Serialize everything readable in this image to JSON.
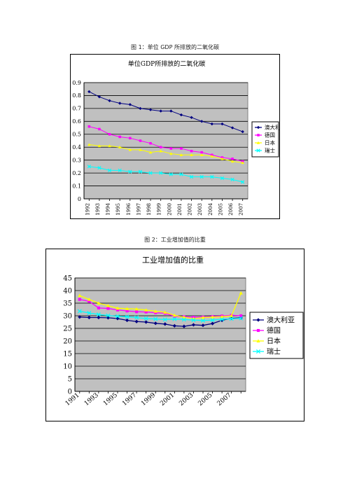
{
  "figure1": {
    "caption": "图 1：单位 GDP 所排放的二氧化碳"
  },
  "figure2": {
    "caption": "图 2：工业增加值的比重"
  },
  "chart_data": [
    {
      "type": "line",
      "title": "单位GDP所排放的二氧化碳",
      "xlabel": "",
      "ylabel": "",
      "x": [
        "1992",
        "1993",
        "1994",
        "1995",
        "1996",
        "1997",
        "1998",
        "1999",
        "2000",
        "2001",
        "2002",
        "2003",
        "2004",
        "2005",
        "2006",
        "2007"
      ],
      "ylim": [
        0,
        0.9
      ],
      "yticks": [
        "0",
        "0.1",
        "0.2",
        "0.3",
        "0.4",
        "0.5",
        "0.6",
        "0.7",
        "0.8",
        "0.9"
      ],
      "grid": true,
      "legend_position": "right",
      "series": [
        {
          "name": "澳大利亚",
          "color": "#000080",
          "marker": "diamond",
          "values": [
            0.83,
            0.79,
            0.76,
            0.74,
            0.73,
            0.7,
            0.69,
            0.68,
            0.68,
            0.65,
            0.63,
            0.6,
            0.58,
            0.58,
            0.55,
            0.52
          ]
        },
        {
          "name": "德国",
          "color": "#ff00ff",
          "marker": "square",
          "values": [
            0.56,
            0.54,
            0.5,
            0.48,
            0.47,
            0.45,
            0.43,
            0.4,
            0.39,
            0.39,
            0.37,
            0.36,
            0.34,
            0.32,
            0.31,
            0.29
          ]
        },
        {
          "name": "日本",
          "color": "#ffff00",
          "marker": "triangle",
          "values": [
            0.42,
            0.41,
            0.41,
            0.4,
            0.38,
            0.38,
            0.36,
            0.37,
            0.35,
            0.34,
            0.34,
            0.34,
            0.33,
            0.31,
            0.29,
            0.28
          ]
        },
        {
          "name": "瑞士",
          "color": "#00ffff",
          "marker": "x",
          "values": [
            0.25,
            0.24,
            0.22,
            0.22,
            0.21,
            0.21,
            0.2,
            0.2,
            0.19,
            0.19,
            0.17,
            0.17,
            0.17,
            0.16,
            0.15,
            0.13
          ]
        }
      ]
    },
    {
      "type": "line",
      "title": "工业增加值的比重",
      "xlabel": "",
      "ylabel": "",
      "x": [
        "1991",
        "1992",
        "1993",
        "1994",
        "1995",
        "1996",
        "1997",
        "1998",
        "1999",
        "2000",
        "2001",
        "2002",
        "2003",
        "2004",
        "2005",
        "2006",
        "2007",
        "2008"
      ],
      "xtick_labels": [
        "1991",
        "",
        "1993",
        "",
        "1995",
        "",
        "1997",
        "",
        "1999",
        "",
        "2001",
        "",
        "2003",
        "",
        "2005",
        "",
        "2007",
        ""
      ],
      "ylim": [
        0,
        45
      ],
      "yticks": [
        "0",
        "5",
        "10",
        "15",
        "20",
        "25",
        "30",
        "35",
        "40",
        "45"
      ],
      "grid": true,
      "legend_position": "right",
      "series": [
        {
          "name": "澳大利亚",
          "color": "#000080",
          "marker": "diamond",
          "values": [
            29.5,
            29.3,
            29.3,
            29.2,
            28.9,
            28.2,
            27.7,
            27.5,
            27.0,
            26.7,
            26.0,
            25.8,
            26.4,
            26.2,
            26.9,
            28.2,
            29.0,
            29.2
          ]
        },
        {
          "name": "德国",
          "color": "#ff00ff",
          "marker": "square",
          "values": [
            36.5,
            35.7,
            33.1,
            32.9,
            32.3,
            31.9,
            31.6,
            31.5,
            31.2,
            31.0,
            29.8,
            29.6,
            29.4,
            29.5,
            29.7,
            29.9,
            30.2,
            30.0
          ]
        },
        {
          "name": "日本",
          "color": "#ffff00",
          "marker": "triangle",
          "values": [
            38.0,
            36.5,
            35.0,
            34.0,
            33.0,
            32.8,
            32.7,
            32.3,
            31.8,
            31.4,
            30.2,
            29.4,
            28.9,
            29.3,
            29.5,
            29.6,
            30.0,
            39.0
          ]
        },
        {
          "name": "瑞士",
          "color": "#00ffff",
          "marker": "x",
          "values": [
            31.8,
            31.1,
            30.5,
            30.1,
            29.8,
            29.6,
            29.3,
            28.9,
            28.7,
            28.5,
            28.7,
            28.5,
            28.3,
            28.1,
            28.3,
            28.6,
            28.8,
            29.0
          ]
        }
      ]
    }
  ]
}
